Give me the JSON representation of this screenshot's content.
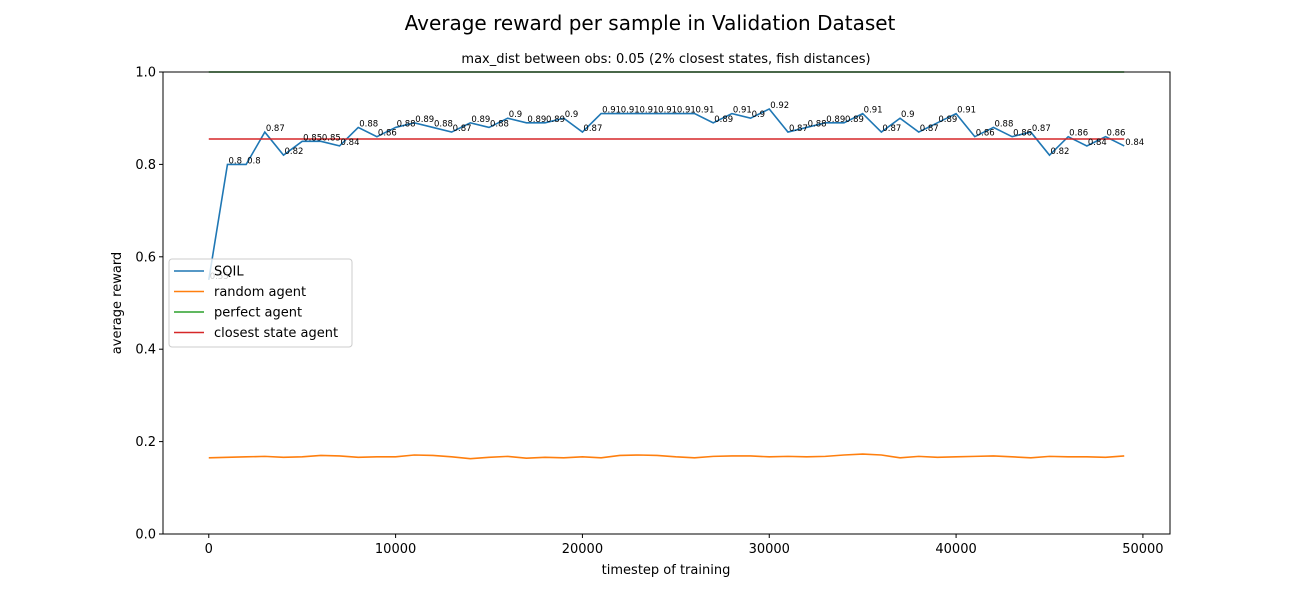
{
  "chart_data": {
    "type": "line",
    "title": "Average reward per sample in Validation Dataset",
    "subtitle": "max_dist between obs: 0.05 (2% closest states, fish distances)",
    "x_label": "timestep of training",
    "y_label": "average reward",
    "xlim": [
      -2450,
      51450
    ],
    "ylim": [
      0,
      1
    ],
    "xticks": [
      0,
      10000,
      20000,
      30000,
      40000,
      50000
    ],
    "yticks": [
      {
        "value": 0,
        "label": "0.0"
      },
      0.2,
      0.4,
      0.6,
      0.8,
      {
        "value": 1,
        "label": "1.0"
      }
    ],
    "legend": "center left",
    "x": [
      0,
      1000,
      2000,
      3000,
      4000,
      5000,
      6000,
      7000,
      8000,
      9000,
      10000,
      11000,
      12000,
      13000,
      14000,
      15000,
      16000,
      17000,
      18000,
      19000,
      20000,
      21000,
      22000,
      23000,
      24000,
      25000,
      26000,
      27000,
      28000,
      29000,
      30000,
      31000,
      32000,
      33000,
      34000,
      35000,
      36000,
      37000,
      38000,
      39000,
      40000,
      41000,
      42000,
      43000,
      44000,
      45000,
      46000,
      47000,
      48000,
      49000
    ],
    "series": [
      {
        "name": "SQIL",
        "color": "#1f77b4",
        "labeled": true,
        "values": [
          0.55,
          0.8,
          0.8,
          0.87,
          0.82,
          0.85,
          0.85,
          0.84,
          0.88,
          0.86,
          0.88,
          0.89,
          0.88,
          0.87,
          0.89,
          0.88,
          0.9,
          0.89,
          0.89,
          0.9,
          0.87,
          0.91,
          0.91,
          0.91,
          0.91,
          0.91,
          0.91,
          0.89,
          0.91,
          0.9,
          0.92,
          0.87,
          0.88,
          0.89,
          0.89,
          0.91,
          0.87,
          0.9,
          0.87,
          0.89,
          0.91,
          0.86,
          0.88,
          0.86,
          0.87,
          0.82,
          0.86,
          0.84,
          0.86,
          0.84
        ]
      },
      {
        "name": "random agent",
        "color": "#ff7f0e",
        "labeled": false,
        "values": [
          0.165,
          0.166,
          0.167,
          0.168,
          0.166,
          0.167,
          0.17,
          0.169,
          0.166,
          0.167,
          0.167,
          0.171,
          0.17,
          0.167,
          0.163,
          0.166,
          0.168,
          0.164,
          0.166,
          0.165,
          0.167,
          0.165,
          0.17,
          0.171,
          0.17,
          0.167,
          0.165,
          0.168,
          0.169,
          0.169,
          0.167,
          0.168,
          0.167,
          0.168,
          0.171,
          0.173,
          0.171,
          0.165,
          0.168,
          0.166,
          0.167,
          0.168,
          0.169,
          0.167,
          0.165,
          0.168,
          0.167,
          0.167,
          0.166,
          0.169
        ]
      },
      {
        "name": "perfect agent",
        "color": "#2ca02c",
        "labeled": false,
        "values": [
          1,
          1,
          1,
          1,
          1,
          1,
          1,
          1,
          1,
          1,
          1,
          1,
          1,
          1,
          1,
          1,
          1,
          1,
          1,
          1,
          1,
          1,
          1,
          1,
          1,
          1,
          1,
          1,
          1,
          1,
          1,
          1,
          1,
          1,
          1,
          1,
          1,
          1,
          1,
          1,
          1,
          1,
          1,
          1,
          1,
          1,
          1,
          1,
          1,
          1
        ]
      },
      {
        "name": "closest state agent",
        "color": "#d62728",
        "labeled": false,
        "values": [
          0.855,
          0.855,
          0.855,
          0.855,
          0.855,
          0.855,
          0.855,
          0.855,
          0.855,
          0.855,
          0.855,
          0.855,
          0.855,
          0.855,
          0.855,
          0.855,
          0.855,
          0.855,
          0.855,
          0.855,
          0.855,
          0.855,
          0.855,
          0.855,
          0.855,
          0.855,
          0.855,
          0.855,
          0.855,
          0.855,
          0.855,
          0.855,
          0.855,
          0.855,
          0.855,
          0.855,
          0.855,
          0.855,
          0.855,
          0.855,
          0.855,
          0.855,
          0.855,
          0.855,
          0.855,
          0.855,
          0.855,
          0.855,
          0.855,
          0.855
        ]
      }
    ]
  }
}
